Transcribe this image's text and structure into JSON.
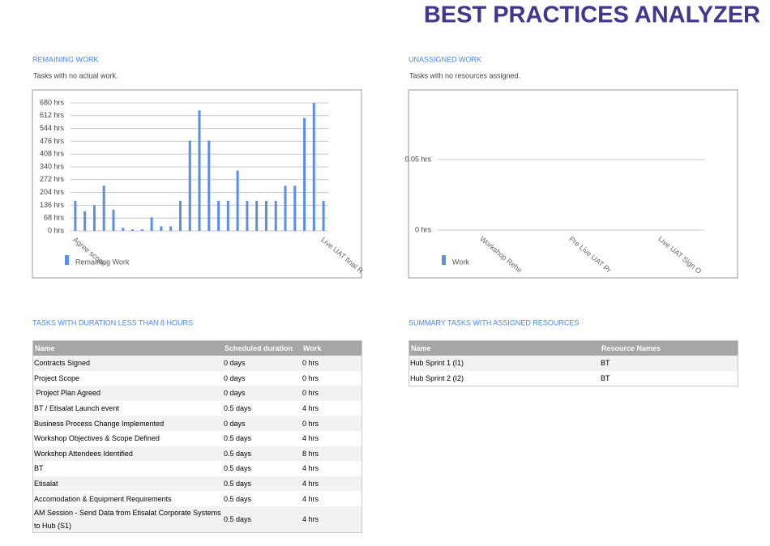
{
  "header": {
    "title": "BEST PRACTICES ANALYZER"
  },
  "chart_data": [
    {
      "type": "bar",
      "title": "REMAINING WORK",
      "subtitle": "Tasks with no actual work.",
      "categories": [
        "Agree scope",
        null,
        null,
        null,
        null,
        null,
        null,
        null,
        null,
        null,
        null,
        null,
        null,
        null,
        null,
        null,
        null,
        null,
        null,
        null,
        null,
        null,
        null,
        null,
        null,
        null,
        "Live UAT final R"
      ],
      "series": [
        {
          "name": "Remaining Work",
          "color": "#5b8ee6",
          "values": [
            160,
            104,
            136,
            240,
            112,
            16,
            8,
            8,
            72,
            24,
            24,
            160,
            480,
            640,
            480,
            160,
            160,
            320,
            160,
            160,
            160,
            160,
            240,
            240,
            600,
            680,
            160
          ]
        }
      ],
      "ylim": [
        0,
        680
      ],
      "yticks": [
        {
          "value": 0,
          "label": "0 hrs"
        },
        {
          "value": 68,
          "label": "68 hrs"
        },
        {
          "value": 136,
          "label": "136 hrs"
        },
        {
          "value": 204,
          "label": "204 hrs"
        },
        {
          "value": 272,
          "label": "272 hrs"
        },
        {
          "value": 340,
          "label": "340 hrs"
        },
        {
          "value": 408,
          "label": "408 hrs"
        },
        {
          "value": 476,
          "label": "476 hrs"
        },
        {
          "value": 544,
          "label": "544 hrs"
        },
        {
          "value": 612,
          "label": "612 hrs"
        },
        {
          "value": 680,
          "label": "680 hrs"
        }
      ],
      "grid": true
    },
    {
      "type": "bar",
      "title": "UNASSIGNED WORK",
      "subtitle": "Tasks with no resources assigned.",
      "categories": [
        "Workshop Rehe",
        "Pre Live UAT Pr",
        "Live UAT Sign O"
      ],
      "series": [
        {
          "name": "Work",
          "color": "#5b8ee6",
          "values": [
            0,
            0,
            0
          ]
        }
      ],
      "ylim": [
        0,
        0.1
      ],
      "yticks": [
        {
          "value": 0,
          "label": "0 hrs"
        },
        {
          "value": 0.05,
          "label": "0.05 hrs"
        }
      ],
      "grid": true
    }
  ],
  "tables": [
    {
      "title": "TASKS WITH DURATION LESS THAN 8 HOURS",
      "columns": [
        "Name",
        "Scheduled duration",
        "Work"
      ],
      "rows": [
        [
          "Contracts Signed",
          "0 days",
          "0 hrs"
        ],
        [
          "Project Scope",
          "0 days",
          "0 hrs"
        ],
        [
          " Project Plan Agreed",
          "0 days",
          "0 hrs"
        ],
        [
          "BT / Etisalat Launch event",
          "0.5 days",
          "4 hrs"
        ],
        [
          "Business Process Change Implemented",
          "0 days",
          "0 hrs"
        ],
        [
          "Workshop Objectives & Scope Defined",
          "0.5 days",
          "4 hrs"
        ],
        [
          "Workshop Attendees Identified",
          "0.5 days",
          "8 hrs"
        ],
        [
          "BT",
          "0.5 days",
          "4 hrs"
        ],
        [
          "Etisalat",
          "0.5 days",
          "4 hrs"
        ],
        [
          "Accomodation & Equipment Requirements",
          "0.5 days",
          "4 hrs"
        ],
        [
          "AM Session - Send Data from Etisalat Corporate Systems to Hub (S1)",
          "0.5 days",
          "4 hrs"
        ]
      ]
    },
    {
      "title": "SUMMARY TASKS WITH ASSIGNED RESOURCES",
      "columns": [
        "Name",
        "Resource Names"
      ],
      "rows": [
        [
          "Hub Sprint 1 (I1)",
          "BT"
        ],
        [
          "Hub Sprint 2 (I2)",
          "BT"
        ]
      ]
    }
  ]
}
